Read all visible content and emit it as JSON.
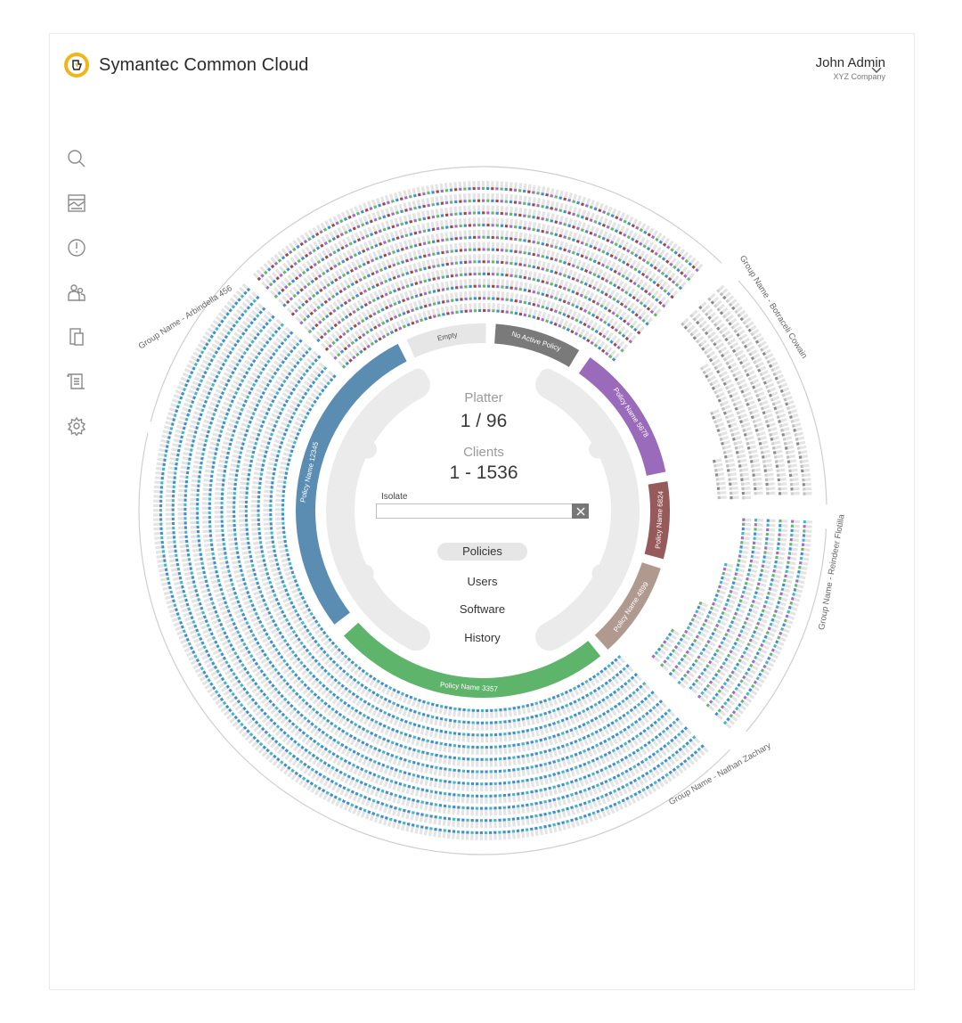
{
  "header": {
    "app_title": "Symantec Common Cloud",
    "user_name": "John Admin",
    "user_company": "XYZ Company"
  },
  "sidebar": {
    "items": [
      {
        "icon": "search-icon"
      },
      {
        "icon": "dashboard-icon"
      },
      {
        "icon": "alert-icon"
      },
      {
        "icon": "users-icon"
      },
      {
        "icon": "devices-icon"
      },
      {
        "icon": "reports-icon"
      },
      {
        "icon": "gear-icon"
      }
    ]
  },
  "platter": {
    "label": "Platter",
    "value": "1 / 96",
    "clients_label": "Clients",
    "clients_value": "1 - 1536"
  },
  "isolate": {
    "label": "Isolate",
    "value": ""
  },
  "view_menu": {
    "selected": "Policies",
    "items": [
      {
        "label": "Policies"
      },
      {
        "label": "Users"
      },
      {
        "label": "Software"
      },
      {
        "label": "History"
      }
    ]
  },
  "groups": [
    {
      "label": "Group Name - Arbindella 456"
    },
    {
      "label": "Group Name - Botraceli Cowain"
    },
    {
      "label": "Group Name - Reindeer Flotilla"
    },
    {
      "label": "Group Name - Nathan Zachary"
    }
  ],
  "policies": [
    {
      "label": "Policy Name 12345",
      "color": "#5b8db2"
    },
    {
      "label": "Empty",
      "color": "#e6e6e6"
    },
    {
      "label": "No Active Policy",
      "color": "#7a7a7a"
    },
    {
      "label": "Policy Name 5678",
      "color": "#9b6bbb"
    },
    {
      "label": "Policy Name 6824",
      "color": "#975a5a"
    },
    {
      "label": "Policy Name 4899",
      "color": "#b09a90"
    },
    {
      "label": "Policy Name 3357",
      "color": "#5db46a"
    }
  ],
  "colors": {
    "brand": "#f2b417",
    "ring_blue": "#3f8fcf",
    "ring_red": "#9b4848",
    "ring_purple": "#a36cc2",
    "ring_green": "#62b86c",
    "ring_teal": "#3fb8c8",
    "ring_gray": "#9a9a9a"
  }
}
